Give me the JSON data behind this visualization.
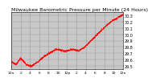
{
  "title": "Milwaukee Barometric Pressure per Minute (24 Hours)",
  "title_fontsize": 4.5,
  "line_color": "#FF0000",
  "bg_color": "#FFFFFF",
  "plot_bg_color": "#C8C8C8",
  "grid_color": "#888888",
  "marker_size": 0.8,
  "ylim": [
    29.45,
    30.35
  ],
  "xlim": [
    0,
    1440
  ],
  "ylabel_fontsize": 3.5,
  "xlabel_fontsize": 3.2,
  "yticks": [
    29.5,
    29.6,
    29.7,
    29.8,
    29.9,
    30.0,
    30.1,
    30.2,
    30.3
  ],
  "ytick_labels": [
    "29.5",
    "29.6",
    "29.7",
    "29.8",
    "29.9",
    "30.0",
    "30.1",
    "30.2",
    "30.3"
  ],
  "xtick_positions": [
    0,
    120,
    240,
    360,
    480,
    600,
    720,
    840,
    960,
    1080,
    1200,
    1320,
    1440
  ],
  "xtick_labels": [
    "12a",
    "2",
    "4",
    "6",
    "8",
    "10",
    "12p",
    "2",
    "4",
    "6",
    "8",
    "10",
    "12a"
  ],
  "vgrid_positions": [
    120,
    240,
    360,
    480,
    600,
    720,
    840,
    960,
    1080,
    1200,
    1320
  ]
}
